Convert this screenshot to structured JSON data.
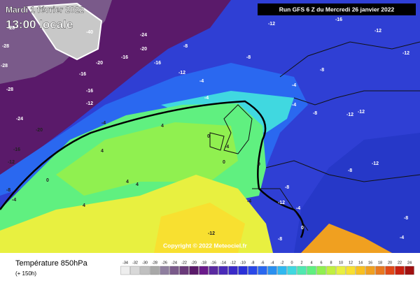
{
  "header": {
    "date": "Mardi 1 février 2022",
    "time": "13:00 locale",
    "run": "Run GFS 6 Z du Mercredi 26 janvier 2022"
  },
  "copyright": "Copyright © 2022 Meteociel.fr",
  "footer": {
    "title": "Température 850hPa",
    "lead": "(+ 150h)"
  },
  "legend": {
    "labels": [
      -34,
      -32,
      -30,
      -28,
      -26,
      -24,
      -22,
      -20,
      -18,
      -16,
      -14,
      -12,
      -10,
      -8,
      -6,
      -4,
      -2,
      0,
      2,
      4,
      6,
      8,
      10,
      12,
      14,
      16,
      18,
      20,
      22,
      24
    ],
    "colors": [
      "#eeeeee",
      "#d8d8d8",
      "#c0c0c0",
      "#a8a8a8",
      "#8f7f9f",
      "#7a5a8a",
      "#6a3a7a",
      "#5a1a6a",
      "#6a1a8a",
      "#5a2aa0",
      "#4a2ab8",
      "#3a2ac8",
      "#2a30d8",
      "#2a48e8",
      "#2a68f0",
      "#2a90f0",
      "#30b8f0",
      "#40d8e0",
      "#50e8b0",
      "#60f080",
      "#90f050",
      "#c0f040",
      "#e8f040",
      "#f8e030",
      "#f8c020",
      "#f0a020",
      "#e87820",
      "#e04818",
      "#c82010",
      "#a01010"
    ]
  },
  "contour_labels": [
    -40,
    -24,
    -20,
    -16,
    -20,
    -16,
    -16,
    -12,
    -16,
    -12,
    -8,
    -4,
    -4,
    -8,
    -12,
    -16,
    -12,
    -12,
    -8,
    -4,
    -8,
    -12,
    -12,
    -12,
    -8,
    -4,
    -28,
    -28,
    -24,
    -20,
    -16,
    -12,
    -8,
    -4,
    0,
    4,
    4,
    4,
    -4,
    0,
    4,
    4,
    0,
    -4,
    -12,
    -8,
    -4,
    0,
    -8,
    -4,
    -12,
    -8,
    -4,
    0,
    -28,
    -28
  ]
}
